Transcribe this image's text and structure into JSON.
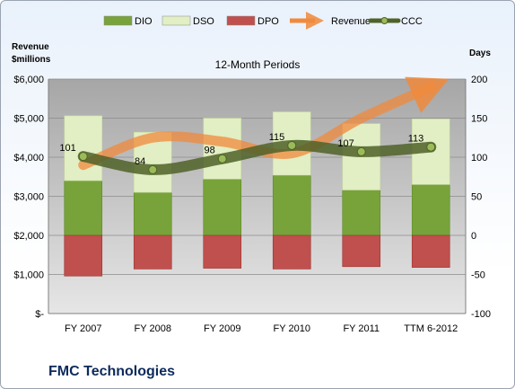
{
  "chart_data": {
    "type": "bar",
    "title": "12-Month Periods",
    "company": "FMC Technologies",
    "left_axis": {
      "label_line1": "Revenue",
      "label_line2": "$millions",
      "ylim": [
        0,
        6000
      ],
      "ticks": [
        {
          "v": 0,
          "label": "$-"
        },
        {
          "v": 1000,
          "label": "$1,000"
        },
        {
          "v": 2000,
          "label": "$2,000"
        },
        {
          "v": 3000,
          "label": "$3,000"
        },
        {
          "v": 4000,
          "label": "$4,000"
        },
        {
          "v": 5000,
          "label": "$5,000"
        },
        {
          "v": 6000,
          "label": "$6,000"
        }
      ]
    },
    "right_axis": {
      "label": "Days",
      "ylim": [
        -100,
        200
      ],
      "ticks": [
        {
          "v": -100,
          "label": "-100"
        },
        {
          "v": -50,
          "label": "-50"
        },
        {
          "v": 0,
          "label": "0"
        },
        {
          "v": 50,
          "label": "50"
        },
        {
          "v": 100,
          "label": "100"
        },
        {
          "v": 150,
          "label": "150"
        },
        {
          "v": 200,
          "label": "200"
        }
      ]
    },
    "categories": [
      "FY 2007",
      "FY 2008",
      "FY 2009",
      "FY 2010",
      "FY 2011",
      "TTM 6-2012"
    ],
    "series": [
      {
        "name": "DIO",
        "axis": "right",
        "color": "#77a33a",
        "values": [
          70,
          55,
          72,
          77,
          58,
          65
        ]
      },
      {
        "name": "DSO",
        "axis": "right",
        "color": "#e2eec4",
        "values": [
          83,
          77,
          78,
          81,
          85,
          84
        ]
      },
      {
        "name": "DPO",
        "axis": "right",
        "color": "#c0504d",
        "values": [
          -52,
          -43,
          -42,
          -43,
          -40,
          -41
        ]
      },
      {
        "name": "Revenue",
        "axis": "left",
        "color": "#f08a3c",
        "values": [
          3800,
          4500,
          4400,
          4100,
          5000,
          5800
        ]
      },
      {
        "name": "CCC",
        "axis": "right",
        "color": "#4f6228",
        "values": [
          101,
          84,
          98,
          115,
          107,
          113
        ]
      }
    ],
    "ccc_labels": [
      "101",
      "84",
      "98",
      "115",
      "107",
      "113"
    ]
  }
}
